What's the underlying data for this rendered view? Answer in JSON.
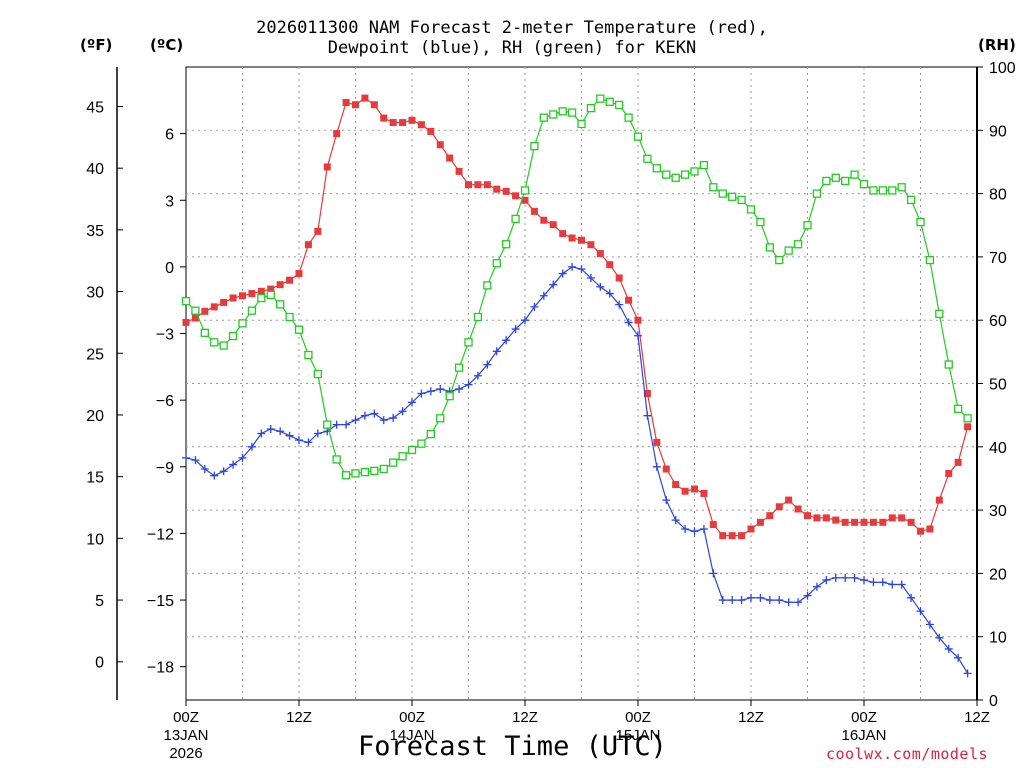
{
  "chart_data": {
    "type": "line",
    "title_line1": "2026011300 NAM Forecast 2-meter Temperature (red),",
    "title_line2": "Dewpoint (blue), RH (green) for KEKN",
    "xlabel": "Forecast Time (UTC)",
    "units": {
      "fahrenheit": "(ºF)",
      "celsius": "(ºC)",
      "rh": "(RH)"
    },
    "credit": "coolwx.com/models",
    "x_ticks": [
      {
        "h": 0,
        "label": "00Z",
        "sub1": "13JAN",
        "sub2": "2026"
      },
      {
        "h": 12,
        "label": "12Z",
        "sub1": "",
        "sub2": ""
      },
      {
        "h": 24,
        "label": "00Z",
        "sub1": "14JAN",
        "sub2": ""
      },
      {
        "h": 36,
        "label": "12Z",
        "sub1": "",
        "sub2": ""
      },
      {
        "h": 48,
        "label": "00Z",
        "sub1": "15JAN",
        "sub2": ""
      },
      {
        "h": 60,
        "label": "12Z",
        "sub1": "",
        "sub2": ""
      },
      {
        "h": 72,
        "label": "00Z",
        "sub1": "16JAN",
        "sub2": ""
      },
      {
        "h": 84,
        "label": "12Z",
        "sub1": "",
        "sub2": ""
      }
    ],
    "xlim": [
      0,
      84
    ],
    "y_left_f_ticks": [
      "45",
      "40",
      "35",
      "30",
      "25",
      "20",
      "15",
      "10",
      "5",
      "0"
    ],
    "y_left_c_ticks": [
      "6",
      "3",
      "0",
      "−3",
      "−6",
      "−9",
      "−12",
      "−15",
      "−18"
    ],
    "y_right_rh_ticks": [
      "100",
      "90",
      "80",
      "70",
      "60",
      "50",
      "40",
      "30",
      "20",
      "10",
      "0"
    ],
    "y_celsius_lim": [
      -19.5,
      9
    ],
    "y_rh_lim": [
      0,
      100
    ],
    "grid": true,
    "series": [
      {
        "name": "Temperature",
        "color": "#e83a3a",
        "marker": "filled-square",
        "axis": "celsius",
        "points": [
          [
            0,
            -2.5
          ],
          [
            1,
            -2.3
          ],
          [
            2,
            -2.0
          ],
          [
            3,
            -1.8
          ],
          [
            4,
            -1.6
          ],
          [
            5,
            -1.4
          ],
          [
            6,
            -1.3
          ],
          [
            7,
            -1.2
          ],
          [
            8,
            -1.1
          ],
          [
            9,
            -1.0
          ],
          [
            10,
            -0.8
          ],
          [
            11,
            -0.6
          ],
          [
            12,
            -0.3
          ],
          [
            13,
            1.0
          ],
          [
            14,
            1.6
          ],
          [
            15,
            4.5
          ],
          [
            16,
            6.0
          ],
          [
            17,
            7.4
          ],
          [
            18,
            7.3
          ],
          [
            19,
            7.6
          ],
          [
            20,
            7.3
          ],
          [
            21,
            6.7
          ],
          [
            22,
            6.5
          ],
          [
            23,
            6.5
          ],
          [
            24,
            6.6
          ],
          [
            25,
            6.4
          ],
          [
            26,
            6.1
          ],
          [
            27,
            5.5
          ],
          [
            28,
            4.9
          ],
          [
            29,
            4.3
          ],
          [
            30,
            3.7
          ],
          [
            31,
            3.7
          ],
          [
            32,
            3.7
          ],
          [
            33,
            3.5
          ],
          [
            34,
            3.4
          ],
          [
            35,
            3.2
          ],
          [
            36,
            3.0
          ],
          [
            37,
            2.5
          ],
          [
            38,
            2.1
          ],
          [
            39,
            1.9
          ],
          [
            40,
            1.5
          ],
          [
            41,
            1.3
          ],
          [
            42,
            1.2
          ],
          [
            43,
            1.0
          ],
          [
            44,
            0.6
          ],
          [
            45,
            0.1
          ],
          [
            46,
            -0.5
          ],
          [
            47,
            -1.5
          ],
          [
            48,
            -2.4
          ],
          [
            49,
            -5.7
          ],
          [
            50,
            -7.9
          ],
          [
            51,
            -9.1
          ],
          [
            52,
            -9.8
          ],
          [
            53,
            -10.1
          ],
          [
            54,
            -10.0
          ],
          [
            55,
            -10.2
          ],
          [
            56,
            -11.6
          ],
          [
            57,
            -12.1
          ],
          [
            58,
            -12.1
          ],
          [
            59,
            -12.1
          ],
          [
            60,
            -11.8
          ],
          [
            61,
            -11.5
          ],
          [
            62,
            -11.2
          ],
          [
            63,
            -10.8
          ],
          [
            64,
            -10.5
          ],
          [
            65,
            -10.9
          ],
          [
            66,
            -11.2
          ],
          [
            67,
            -11.3
          ],
          [
            68,
            -11.3
          ],
          [
            69,
            -11.4
          ],
          [
            70,
            -11.5
          ],
          [
            71,
            -11.5
          ],
          [
            72,
            -11.5
          ],
          [
            73,
            -11.5
          ],
          [
            74,
            -11.5
          ],
          [
            75,
            -11.3
          ],
          [
            76,
            -11.3
          ],
          [
            77,
            -11.5
          ],
          [
            78,
            -11.9
          ],
          [
            79,
            -11.8
          ],
          [
            80,
            -10.5
          ],
          [
            81,
            -9.3
          ],
          [
            82,
            -8.8
          ],
          [
            83,
            -7.2
          ]
        ]
      },
      {
        "name": "Dewpoint",
        "color": "#2b44e8",
        "marker": "plus",
        "axis": "celsius",
        "points": [
          [
            0,
            -8.6
          ],
          [
            1,
            -8.7
          ],
          [
            2,
            -9.1
          ],
          [
            3,
            -9.4
          ],
          [
            4,
            -9.2
          ],
          [
            5,
            -8.9
          ],
          [
            6,
            -8.6
          ],
          [
            7,
            -8.1
          ],
          [
            8,
            -7.5
          ],
          [
            9,
            -7.3
          ],
          [
            10,
            -7.4
          ],
          [
            11,
            -7.6
          ],
          [
            12,
            -7.8
          ],
          [
            13,
            -7.9
          ],
          [
            14,
            -7.5
          ],
          [
            15,
            -7.4
          ],
          [
            16,
            -7.1
          ],
          [
            17,
            -7.1
          ],
          [
            18,
            -6.9
          ],
          [
            19,
            -6.7
          ],
          [
            20,
            -6.6
          ],
          [
            21,
            -6.9
          ],
          [
            22,
            -6.8
          ],
          [
            23,
            -6.5
          ],
          [
            24,
            -6.1
          ],
          [
            25,
            -5.7
          ],
          [
            26,
            -5.6
          ],
          [
            27,
            -5.5
          ],
          [
            28,
            -5.6
          ],
          [
            29,
            -5.5
          ],
          [
            30,
            -5.3
          ],
          [
            31,
            -4.9
          ],
          [
            32,
            -4.4
          ],
          [
            33,
            -3.8
          ],
          [
            34,
            -3.3
          ],
          [
            35,
            -2.8
          ],
          [
            36,
            -2.4
          ],
          [
            37,
            -1.8
          ],
          [
            38,
            -1.3
          ],
          [
            39,
            -0.8
          ],
          [
            40,
            -0.3
          ],
          [
            41,
            0.0
          ],
          [
            42,
            -0.1
          ],
          [
            43,
            -0.5
          ],
          [
            44,
            -0.9
          ],
          [
            45,
            -1.2
          ],
          [
            46,
            -1.7
          ],
          [
            47,
            -2.5
          ],
          [
            48,
            -3.1
          ],
          [
            49,
            -6.7
          ],
          [
            50,
            -9.0
          ],
          [
            51,
            -10.5
          ],
          [
            52,
            -11.4
          ],
          [
            53,
            -11.8
          ],
          [
            54,
            -11.9
          ],
          [
            55,
            -11.8
          ],
          [
            56,
            -13.8
          ],
          [
            57,
            -15.0
          ],
          [
            58,
            -15.0
          ],
          [
            59,
            -15.0
          ],
          [
            60,
            -14.9
          ],
          [
            61,
            -14.9
          ],
          [
            62,
            -15.0
          ],
          [
            63,
            -15.0
          ],
          [
            64,
            -15.1
          ],
          [
            65,
            -15.1
          ],
          [
            66,
            -14.8
          ],
          [
            67,
            -14.4
          ],
          [
            68,
            -14.1
          ],
          [
            69,
            -14.0
          ],
          [
            70,
            -14.0
          ],
          [
            71,
            -14.0
          ],
          [
            72,
            -14.1
          ],
          [
            73,
            -14.2
          ],
          [
            74,
            -14.2
          ],
          [
            75,
            -14.3
          ],
          [
            76,
            -14.3
          ],
          [
            77,
            -14.9
          ],
          [
            78,
            -15.5
          ],
          [
            79,
            -16.1
          ],
          [
            80,
            -16.7
          ],
          [
            81,
            -17.2
          ],
          [
            82,
            -17.6
          ],
          [
            83,
            -18.3
          ]
        ]
      },
      {
        "name": "RH",
        "color": "#22cc22",
        "marker": "open-square",
        "axis": "rh",
        "points": [
          [
            0,
            63.0
          ],
          [
            1,
            61.5
          ],
          [
            2,
            58.0
          ],
          [
            3,
            56.5
          ],
          [
            4,
            56.0
          ],
          [
            5,
            57.5
          ],
          [
            6,
            59.5
          ],
          [
            7,
            61.5
          ],
          [
            8,
            63.5
          ],
          [
            9,
            64.0
          ],
          [
            10,
            62.5
          ],
          [
            11,
            60.5
          ],
          [
            12,
            58.5
          ],
          [
            13,
            54.5
          ],
          [
            14,
            51.5
          ],
          [
            15,
            43.5
          ],
          [
            16,
            38.0
          ],
          [
            17,
            35.5
          ],
          [
            18,
            35.8
          ],
          [
            19,
            36.0
          ],
          [
            20,
            36.2
          ],
          [
            21,
            36.5
          ],
          [
            22,
            37.5
          ],
          [
            23,
            38.5
          ],
          [
            24,
            39.5
          ],
          [
            25,
            40.5
          ],
          [
            26,
            42.0
          ],
          [
            27,
            44.5
          ],
          [
            28,
            48.0
          ],
          [
            29,
            52.5
          ],
          [
            30,
            56.5
          ],
          [
            31,
            60.5
          ],
          [
            32,
            65.5
          ],
          [
            33,
            69.0
          ],
          [
            34,
            72.0
          ],
          [
            35,
            76.0
          ],
          [
            36,
            80.5
          ],
          [
            37,
            87.5
          ],
          [
            38,
            92.0
          ],
          [
            39,
            92.5
          ],
          [
            40,
            93.0
          ],
          [
            41,
            92.8
          ],
          [
            42,
            91.0
          ],
          [
            43,
            93.5
          ],
          [
            44,
            95.0
          ],
          [
            45,
            94.5
          ],
          [
            46,
            94.0
          ],
          [
            47,
            92.0
          ],
          [
            48,
            89.0
          ],
          [
            49,
            85.5
          ],
          [
            50,
            84.0
          ],
          [
            51,
            83.0
          ],
          [
            52,
            82.5
          ],
          [
            53,
            83.0
          ],
          [
            54,
            83.5
          ],
          [
            55,
            84.5
          ],
          [
            56,
            81.0
          ],
          [
            57,
            80.0
          ],
          [
            58,
            79.5
          ],
          [
            59,
            79.0
          ],
          [
            60,
            77.5
          ],
          [
            61,
            75.5
          ],
          [
            62,
            71.5
          ],
          [
            63,
            69.5
          ],
          [
            64,
            71.0
          ],
          [
            65,
            72.0
          ],
          [
            66,
            75.0
          ],
          [
            67,
            80.0
          ],
          [
            68,
            82.0
          ],
          [
            69,
            82.5
          ],
          [
            70,
            82.0
          ],
          [
            71,
            83.0
          ],
          [
            72,
            81.5
          ],
          [
            73,
            80.5
          ],
          [
            74,
            80.5
          ],
          [
            75,
            80.5
          ],
          [
            76,
            81.0
          ],
          [
            77,
            79.0
          ],
          [
            78,
            75.5
          ],
          [
            79,
            69.5
          ],
          [
            80,
            61.0
          ],
          [
            81,
            53.0
          ],
          [
            82,
            46.0
          ],
          [
            83,
            44.5
          ]
        ]
      }
    ]
  }
}
